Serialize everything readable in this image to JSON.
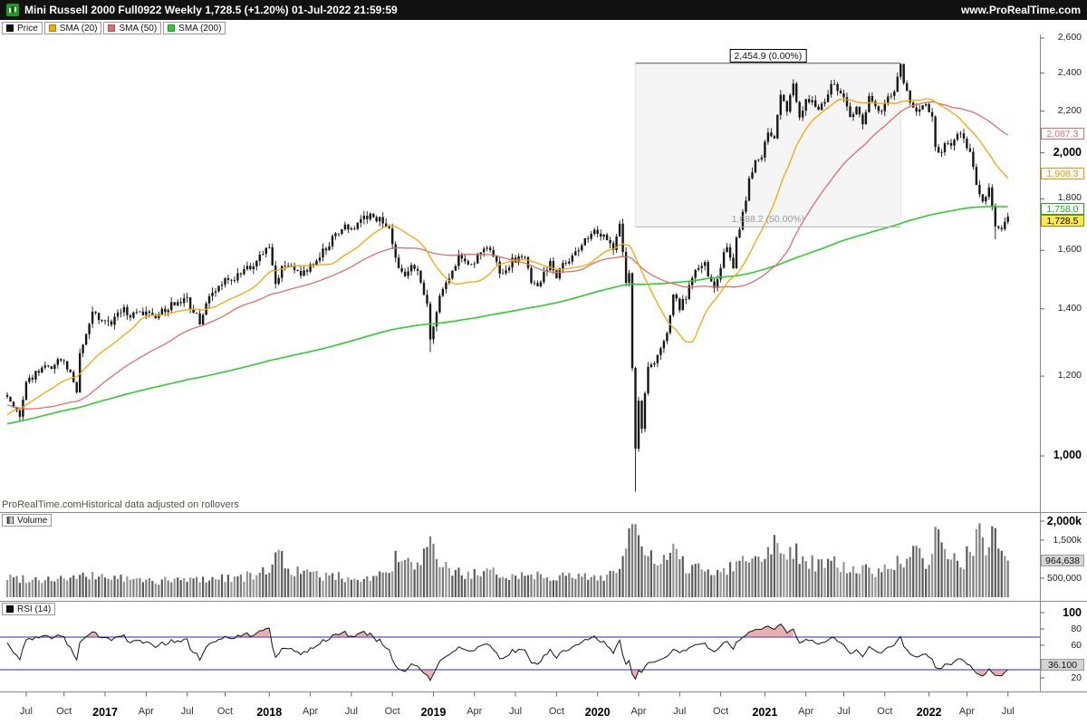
{
  "header": {
    "title": "Mini Russell 2000 Full0922 Weekly 1,728.5 (+1.20%) 01-Jul-2022 21:59:59",
    "site": "www.ProRealTime.com"
  },
  "price_panel": {
    "legend": [
      {
        "label": "Price",
        "color": "#111111"
      },
      {
        "label": "SMA (20)",
        "color": "#f2a900"
      },
      {
        "label": "SMA (50)",
        "color": "#dc6e6e"
      },
      {
        "label": "SMA (200)",
        "color": "#2ecc2e"
      }
    ],
    "footer_brand": "ProRealTime.com",
    "footer_note": "Historical data adjusted on rollovers",
    "axis_ticks": [
      {
        "value": 2600,
        "label": "2,600",
        "major": false
      },
      {
        "value": 2400,
        "label": "2,400",
        "major": false
      },
      {
        "value": 2200,
        "label": "2,200",
        "major": false
      },
      {
        "value": 2000,
        "label": "2,000",
        "major": true
      },
      {
        "value": 1800,
        "label": "1,800",
        "major": false
      },
      {
        "value": 1600,
        "label": "1,600",
        "major": false
      },
      {
        "value": 1400,
        "label": "1,400",
        "major": false
      },
      {
        "value": 1200,
        "label": "1,200",
        "major": false
      },
      {
        "value": 1000,
        "label": "1,000",
        "major": true
      }
    ],
    "badges": [
      {
        "name": "sma50-value-badge",
        "label": "2,087.3",
        "value": 2087.3,
        "color": "#dc6e6e",
        "kind": "outline"
      },
      {
        "name": "sma20-value-badge",
        "label": "1,908.3",
        "value": 1908.3,
        "color": "#dd9900",
        "kind": "outline"
      },
      {
        "name": "sma200-value-badge",
        "label": "1,758.0",
        "value": 1758.0,
        "color": "#1fa81f",
        "kind": "outline"
      },
      {
        "name": "last-price-badge",
        "label": "1,728.5",
        "value": 1728.5,
        "color": "#000000",
        "kind": "last"
      }
    ],
    "fib_retracement": {
      "label_top": "2,454.9 (0.00%)",
      "label_bottom": "1,688.2 (50.00%)",
      "level_top": 2454.9,
      "level_bottom": 1688.2,
      "week_start": 199,
      "week_end": 283
    }
  },
  "volume_panel": {
    "legend_label": "Volume",
    "axis_ticks": [
      {
        "value": 2000,
        "label": "2,000k",
        "major": true
      },
      {
        "value": 1500,
        "label": "1,500k",
        "major": false
      },
      {
        "value": 500,
        "label": "500,000",
        "major": false
      }
    ],
    "badge": {
      "label": "964,638",
      "value": 964.638
    }
  },
  "rsi_panel": {
    "legend_label": "RSI (14)",
    "axis_ticks": [
      {
        "value": 100,
        "label": "100",
        "major": true
      },
      {
        "value": 80,
        "label": "80",
        "major": false
      },
      {
        "value": 60,
        "label": "60",
        "major": false
      },
      {
        "value": 20,
        "label": "20",
        "major": false
      }
    ],
    "badge": {
      "label": "36.100",
      "value": 36.1
    },
    "levels": [
      70,
      30
    ],
    "level_color": "#2929b8"
  },
  "time_axis": {
    "labels": [
      {
        "label": "Jul",
        "week": 6,
        "year": false
      },
      {
        "label": "Oct",
        "week": 18,
        "year": false
      },
      {
        "label": "2017",
        "week": 31,
        "year": true
      },
      {
        "label": "Apr",
        "week": 44,
        "year": false
      },
      {
        "label": "Jul",
        "week": 57,
        "year": false
      },
      {
        "label": "Oct",
        "week": 69,
        "year": false
      },
      {
        "label": "2018",
        "week": 83,
        "year": true
      },
      {
        "label": "Apr",
        "week": 96,
        "year": false
      },
      {
        "label": "Jul",
        "week": 109,
        "year": false
      },
      {
        "label": "Oct",
        "week": 122,
        "year": false
      },
      {
        "label": "2019",
        "week": 135,
        "year": true
      },
      {
        "label": "Apr",
        "week": 148,
        "year": false
      },
      {
        "label": "Jul",
        "week": 161,
        "year": false
      },
      {
        "label": "Oct",
        "week": 174,
        "year": false
      },
      {
        "label": "2020",
        "week": 187,
        "year": true
      },
      {
        "label": "Apr",
        "week": 200,
        "year": false
      },
      {
        "label": "Jul",
        "week": 213,
        "year": false
      },
      {
        "label": "Oct",
        "week": 226,
        "year": false
      },
      {
        "label": "2021",
        "week": 240,
        "year": true
      },
      {
        "label": "Apr",
        "week": 253,
        "year": false
      },
      {
        "label": "Jul",
        "week": 265,
        "year": false
      },
      {
        "label": "Oct",
        "week": 278,
        "year": false
      },
      {
        "label": "2022",
        "week": 292,
        "year": true
      },
      {
        "label": "Apr",
        "week": 304,
        "year": false
      },
      {
        "label": "Jul",
        "week": 317,
        "year": false
      }
    ]
  },
  "chart_data": {
    "type": "candlestick",
    "title": "Mini Russell 2000 Full0922 Weekly",
    "instrument": "Mini Russell 2000 Full0922",
    "timeframe": "Weekly",
    "y_scale": "log",
    "price_axis_range": [
      930,
      2650
    ],
    "weeks": 318,
    "panels": [
      "price",
      "volume",
      "rsi"
    ],
    "indicators": [
      {
        "name": "SMA",
        "period": 20
      },
      {
        "name": "SMA",
        "period": 50
      },
      {
        "name": "SMA",
        "period": 200
      },
      {
        "name": "RSI",
        "period": 14
      }
    ],
    "last": {
      "close": 1728.5,
      "change_pct": "+1.20%",
      "volume": 964638,
      "sma20": 1908.3,
      "sma50": 2087.3,
      "sma200": 1758.0,
      "rsi": 36.1
    },
    "price_anchors": [
      [
        0,
        1148
      ],
      [
        2,
        1125
      ],
      [
        4,
        1086
      ],
      [
        6,
        1178
      ],
      [
        9,
        1205
      ],
      [
        12,
        1232
      ],
      [
        14,
        1215
      ],
      [
        16,
        1243
      ],
      [
        18,
        1240
      ],
      [
        20,
        1205
      ],
      [
        22,
        1163
      ],
      [
        23,
        1260
      ],
      [
        25,
        1320
      ],
      [
        27,
        1382
      ],
      [
        29,
        1372
      ],
      [
        31,
        1368
      ],
      [
        33,
        1352
      ],
      [
        35,
        1380
      ],
      [
        37,
        1396
      ],
      [
        39,
        1372
      ],
      [
        41,
        1386
      ],
      [
        44,
        1382
      ],
      [
        46,
        1372
      ],
      [
        48,
        1390
      ],
      [
        50,
        1398
      ],
      [
        52,
        1412
      ],
      [
        55,
        1424
      ],
      [
        57,
        1432
      ],
      [
        59,
        1388
      ],
      [
        61,
        1360
      ],
      [
        63,
        1420
      ],
      [
        66,
        1462
      ],
      [
        69,
        1502
      ],
      [
        71,
        1492
      ],
      [
        73,
        1512
      ],
      [
        75,
        1528
      ],
      [
        77,
        1544
      ],
      [
        79,
        1556
      ],
      [
        81,
        1592
      ],
      [
        83,
        1608
      ],
      [
        85,
        1492
      ],
      [
        87,
        1532
      ],
      [
        89,
        1548
      ],
      [
        91,
        1540
      ],
      [
        93,
        1512
      ],
      [
        95,
        1532
      ],
      [
        97,
        1556
      ],
      [
        99,
        1582
      ],
      [
        101,
        1612
      ],
      [
        103,
        1642
      ],
      [
        105,
        1662
      ],
      [
        107,
        1692
      ],
      [
        109,
        1682
      ],
      [
        111,
        1702
      ],
      [
        113,
        1722
      ],
      [
        115,
        1738
      ],
      [
        117,
        1722
      ],
      [
        119,
        1708
      ],
      [
        121,
        1688
      ],
      [
        123,
        1566
      ],
      [
        124,
        1528
      ],
      [
        126,
        1502
      ],
      [
        128,
        1538
      ],
      [
        130,
        1522
      ],
      [
        131,
        1482
      ],
      [
        133,
        1418
      ],
      [
        134,
        1302
      ],
      [
        135,
        1348
      ],
      [
        137,
        1442
      ],
      [
        139,
        1482
      ],
      [
        141,
        1522
      ],
      [
        143,
        1578
      ],
      [
        145,
        1562
      ],
      [
        147,
        1542
      ],
      [
        149,
        1582
      ],
      [
        151,
        1602
      ],
      [
        153,
        1612
      ],
      [
        155,
        1548
      ],
      [
        156,
        1512
      ],
      [
        158,
        1524
      ],
      [
        160,
        1562
      ],
      [
        162,
        1572
      ],
      [
        164,
        1582
      ],
      [
        166,
        1492
      ],
      [
        168,
        1462
      ],
      [
        170,
        1512
      ],
      [
        172,
        1562
      ],
      [
        174,
        1512
      ],
      [
        176,
        1548
      ],
      [
        178,
        1572
      ],
      [
        180,
        1592
      ],
      [
        182,
        1618
      ],
      [
        184,
        1648
      ],
      [
        186,
        1672
      ],
      [
        188,
        1662
      ],
      [
        190,
        1648
      ],
      [
        192,
        1602
      ],
      [
        194,
        1692
      ],
      [
        196,
        1484
      ],
      [
        197,
        1512
      ],
      [
        198,
        1222
      ],
      [
        199,
        1012
      ],
      [
        200,
        1132
      ],
      [
        201,
        1062
      ],
      [
        202,
        1152
      ],
      [
        203,
        1222
      ],
      [
        205,
        1232
      ],
      [
        207,
        1272
      ],
      [
        209,
        1322
      ],
      [
        211,
        1452
      ],
      [
        212,
        1422
      ],
      [
        213,
        1402
      ],
      [
        215,
        1442
      ],
      [
        217,
        1502
      ],
      [
        219,
        1542
      ],
      [
        221,
        1562
      ],
      [
        222,
        1502
      ],
      [
        224,
        1472
      ],
      [
        226,
        1542
      ],
      [
        228,
        1622
      ],
      [
        230,
        1542
      ],
      [
        231,
        1642
      ],
      [
        233,
        1742
      ],
      [
        235,
        1872
      ],
      [
        237,
        1952
      ],
      [
        239,
        1982
      ],
      [
        241,
        2102
      ],
      [
        243,
        2062
      ],
      [
        245,
        2282
      ],
      [
        247,
        2202
      ],
      [
        249,
        2352
      ],
      [
        251,
        2172
      ],
      [
        253,
        2252
      ],
      [
        255,
        2262
      ],
      [
        257,
        2212
      ],
      [
        259,
        2232
      ],
      [
        261,
        2332
      ],
      [
        263,
        2322
      ],
      [
        265,
        2282
      ],
      [
        267,
        2172
      ],
      [
        269,
        2222
      ],
      [
        271,
        2152
      ],
      [
        273,
        2272
      ],
      [
        275,
        2232
      ],
      [
        277,
        2202
      ],
      [
        279,
        2262
      ],
      [
        281,
        2292
      ],
      [
        283,
        2432
      ],
      [
        284,
        2352
      ],
      [
        286,
        2232
      ],
      [
        288,
        2182
      ],
      [
        290,
        2222
      ],
      [
        291,
        2242
      ],
      [
        293,
        2162
      ],
      [
        294,
        2032
      ],
      [
        295,
        1992
      ],
      [
        297,
        2042
      ],
      [
        299,
        2042
      ],
      [
        301,
        2082
      ],
      [
        303,
        2072
      ],
      [
        305,
        2002
      ],
      [
        307,
        1872
      ],
      [
        309,
        1792
      ],
      [
        311,
        1842
      ],
      [
        313,
        1682
      ],
      [
        315,
        1672
      ],
      [
        316,
        1708
      ],
      [
        317,
        1728.5
      ]
    ],
    "forced_extremes": [
      {
        "week": 4,
        "low": 1082
      },
      {
        "week": 115,
        "high": 1745
      },
      {
        "week": 134,
        "low": 1268
      },
      {
        "week": 194,
        "high": 1706
      },
      {
        "week": 199,
        "low": 921.5
      },
      {
        "week": 249,
        "high": 2361
      },
      {
        "week": 283,
        "high": 2454.9
      },
      {
        "week": 313,
        "low": 1641
      }
    ],
    "warmup_anchors": [
      [
        -200,
        790
      ],
      [
        -170,
        900
      ],
      [
        -150,
        1010
      ],
      [
        -130,
        1080
      ],
      [
        -110,
        1130
      ],
      [
        -90,
        1160
      ],
      [
        -70,
        1210
      ],
      [
        -55,
        1255
      ],
      [
        -45,
        1200
      ],
      [
        -35,
        1160
      ],
      [
        -25,
        1080
      ],
      [
        -20,
        1000
      ],
      [
        -15,
        1060
      ],
      [
        -10,
        1110
      ],
      [
        -5,
        1130
      ],
      [
        -1,
        1142
      ]
    ],
    "volume_anchors_k": [
      [
        0,
        520
      ],
      [
        10,
        480
      ],
      [
        20,
        500
      ],
      [
        30,
        560
      ],
      [
        40,
        450
      ],
      [
        50,
        430
      ],
      [
        60,
        470
      ],
      [
        70,
        520
      ],
      [
        80,
        560
      ],
      [
        84,
        900
      ],
      [
        86,
        1250
      ],
      [
        88,
        800
      ],
      [
        95,
        600
      ],
      [
        100,
        560
      ],
      [
        107,
        520
      ],
      [
        113,
        480
      ],
      [
        120,
        620
      ],
      [
        123,
        980
      ],
      [
        126,
        900
      ],
      [
        130,
        800
      ],
      [
        134,
        1300
      ],
      [
        136,
        1000
      ],
      [
        140,
        700
      ],
      [
        145,
        620
      ],
      [
        150,
        580
      ],
      [
        155,
        640
      ],
      [
        160,
        560
      ],
      [
        165,
        600
      ],
      [
        170,
        580
      ],
      [
        175,
        560
      ],
      [
        180,
        520
      ],
      [
        185,
        540
      ],
      [
        190,
        560
      ],
      [
        194,
        800
      ],
      [
        196,
        1350
      ],
      [
        198,
        1900
      ],
      [
        199,
        1600
      ],
      [
        200,
        1400
      ],
      [
        202,
        1100
      ],
      [
        205,
        1000
      ],
      [
        208,
        900
      ],
      [
        211,
        1250
      ],
      [
        213,
        900
      ],
      [
        216,
        800
      ],
      [
        220,
        750
      ],
      [
        224,
        700
      ],
      [
        228,
        760
      ],
      [
        231,
        900
      ],
      [
        233,
        1000
      ],
      [
        235,
        1100
      ],
      [
        237,
        1000
      ],
      [
        239,
        900
      ],
      [
        241,
        1300
      ],
      [
        243,
        1600
      ],
      [
        245,
        1400
      ],
      [
        247,
        1200
      ],
      [
        249,
        1300
      ],
      [
        251,
        1100
      ],
      [
        253,
        1000
      ],
      [
        256,
        900
      ],
      [
        259,
        850
      ],
      [
        261,
        900
      ],
      [
        264,
        800
      ],
      [
        267,
        750
      ],
      [
        270,
        700
      ],
      [
        273,
        720
      ],
      [
        276,
        700
      ],
      [
        279,
        750
      ],
      [
        281,
        800
      ],
      [
        283,
        1000
      ],
      [
        285,
        900
      ],
      [
        288,
        1200
      ],
      [
        291,
        800
      ],
      [
        293,
        1000
      ],
      [
        294,
        1900
      ],
      [
        295,
        1500
      ],
      [
        297,
        1100
      ],
      [
        299,
        1250
      ],
      [
        301,
        1000
      ],
      [
        303,
        950
      ],
      [
        305,
        1250
      ],
      [
        307,
        1500
      ],
      [
        308,
        1950
      ],
      [
        310,
        1250
      ],
      [
        313,
        1700
      ],
      [
        315,
        1200
      ],
      [
        316,
        1000
      ],
      [
        317,
        964.638
      ]
    ]
  }
}
